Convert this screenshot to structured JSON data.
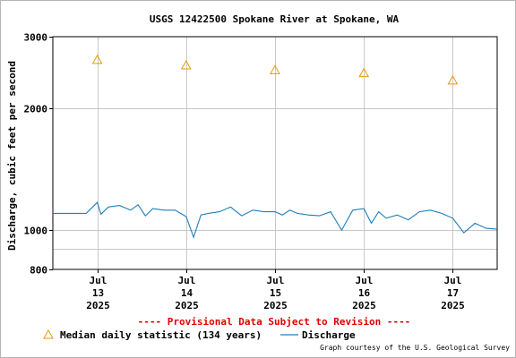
{
  "chart_data": {
    "type": "line",
    "title": "USGS 12422500 Spokane River at Spokane, WA",
    "xlabel": "",
    "ylabel": "Discharge, cubic feet per second",
    "yscale": "log",
    "ylim": [
      800,
      3000
    ],
    "yticks": [
      800,
      1000,
      2000,
      3000
    ],
    "xlim": [
      "2025-07-12 12:00",
      "2025-07-17 12:00"
    ],
    "xticks": [
      {
        "label": [
          "Jul",
          "13",
          "2025"
        ],
        "t": "2025-07-13 00:00"
      },
      {
        "label": [
          "Jul",
          "14",
          "2025"
        ],
        "t": "2025-07-14 00:00"
      },
      {
        "label": [
          "Jul",
          "15",
          "2025"
        ],
        "t": "2025-07-15 00:00"
      },
      {
        "label": [
          "Jul",
          "16",
          "2025"
        ],
        "t": "2025-07-16 00:00"
      },
      {
        "label": [
          "Jul",
          "17",
          "2025"
        ],
        "t": "2025-07-17 00:00"
      }
    ],
    "grid": true,
    "series": [
      {
        "name": "Median daily statistic (134 years)",
        "marker": "triangle",
        "color": "#e89a00",
        "x": [
          "2025-07-13 00:00",
          "2025-07-14 00:00",
          "2025-07-15 00:00",
          "2025-07-16 00:00",
          "2025-07-17 00:00"
        ],
        "values": [
          2630,
          2550,
          2480,
          2440,
          2340
        ]
      },
      {
        "name": "Discharge",
        "color": "#1f7fb8",
        "x": [
          "2025-07-12 12:00",
          "2025-07-12 18:00",
          "2025-07-12 21:00",
          "2025-07-13 00:00",
          "2025-07-13 01:00",
          "2025-07-13 03:00",
          "2025-07-13 06:00",
          "2025-07-13 09:00",
          "2025-07-13 11:00",
          "2025-07-13 13:00",
          "2025-07-13 15:00",
          "2025-07-13 18:00",
          "2025-07-13 21:00",
          "2025-07-14 00:00",
          "2025-07-14 02:00",
          "2025-07-14 04:00",
          "2025-07-14 06:00",
          "2025-07-14 09:00",
          "2025-07-14 12:00",
          "2025-07-14 15:00",
          "2025-07-14 18:00",
          "2025-07-14 21:00",
          "2025-07-15 00:00",
          "2025-07-15 02:00",
          "2025-07-15 04:00",
          "2025-07-15 06:00",
          "2025-07-15 09:00",
          "2025-07-15 12:00",
          "2025-07-15 15:00",
          "2025-07-15 18:00",
          "2025-07-15 21:00",
          "2025-07-16 00:00",
          "2025-07-16 02:00",
          "2025-07-16 04:00",
          "2025-07-16 06:00",
          "2025-07-16 09:00",
          "2025-07-16 12:00",
          "2025-07-16 15:00",
          "2025-07-16 18:00",
          "2025-07-16 21:00",
          "2025-07-17 00:00",
          "2025-07-17 03:00",
          "2025-07-17 06:00",
          "2025-07-17 09:00",
          "2025-07-17 12:00"
        ],
        "values": [
          1100,
          1100,
          1100,
          1170,
          1095,
          1140,
          1150,
          1120,
          1155,
          1085,
          1130,
          1120,
          1120,
          1080,
          960,
          1090,
          1100,
          1110,
          1140,
          1085,
          1120,
          1110,
          1110,
          1090,
          1120,
          1100,
          1090,
          1085,
          1110,
          1000,
          1120,
          1130,
          1040,
          1110,
          1070,
          1090,
          1060,
          1110,
          1120,
          1100,
          1070,
          985,
          1040,
          1010,
          1005
        ]
      }
    ],
    "annotation": "---- Provisional Data Subject to Revision ----",
    "annotation_color": "#dd0000",
    "credit": "Graph courtesy of the U.S. Geological Survey"
  }
}
